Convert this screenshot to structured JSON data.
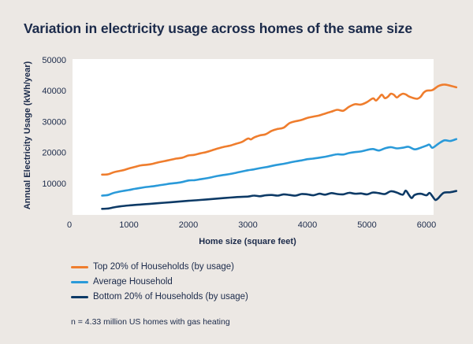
{
  "title": "Variation in electricity usage across homes of the same size",
  "footnote": "n = 4.33 million US homes with gas heating",
  "chart_data": {
    "type": "line",
    "xlabel": "Home size (square feet)",
    "ylabel": "Annual Electricity Usage (kWh/year)",
    "xlim": [
      0,
      6500
    ],
    "ylim": [
      0,
      50000
    ],
    "xticks": [
      0,
      1000,
      2000,
      3000,
      4000,
      5000,
      6000
    ],
    "yticks": [
      10000,
      20000,
      30000,
      40000,
      50000
    ],
    "xtick_labels": [
      "0",
      "1000",
      "2000",
      "3000",
      "4000",
      "5000",
      "6000"
    ],
    "ytick_labels": [
      "10000",
      "20000",
      "30000",
      "40000",
      "50000"
    ],
    "grid": false,
    "legend_position": "bottom",
    "series": [
      {
        "name": "Top 20% of Households (by usage)",
        "color": "#ef7d2d",
        "x": [
          550,
          650,
          750,
          900,
          1000,
          1100,
          1200,
          1300,
          1400,
          1500,
          1600,
          1700,
          1800,
          1900,
          2000,
          2100,
          2200,
          2300,
          2400,
          2500,
          2600,
          2700,
          2800,
          2900,
          3000,
          3050,
          3100,
          3200,
          3300,
          3400,
          3500,
          3600,
          3700,
          3800,
          3900,
          4000,
          4100,
          4200,
          4300,
          4400,
          4500,
          4600,
          4700,
          4800,
          4900,
          5000,
          5100,
          5150,
          5200,
          5250,
          5300,
          5350,
          5400,
          5450,
          5500,
          5550,
          5600,
          5650,
          5700,
          5750,
          5800,
          5850,
          5900,
          5950,
          6000,
          6100,
          6200,
          6300,
          6400,
          6500
        ],
        "values": [
          12800,
          12900,
          13600,
          14200,
          14800,
          15300,
          15800,
          16000,
          16300,
          16800,
          17200,
          17600,
          18000,
          18300,
          19000,
          19200,
          19700,
          20100,
          20700,
          21300,
          21800,
          22200,
          22800,
          23400,
          24500,
          24200,
          24800,
          25500,
          25900,
          27000,
          27600,
          28000,
          29500,
          30100,
          30500,
          31200,
          31600,
          32000,
          32600,
          33200,
          33800,
          33500,
          34800,
          35600,
          35500,
          36300,
          37500,
          36800,
          37700,
          38700,
          37600,
          38000,
          39000,
          38700,
          37800,
          38500,
          39000,
          38800,
          38200,
          37800,
          37500,
          37400,
          38000,
          39300,
          40000,
          40200,
          41500,
          42000,
          41600,
          41100
        ]
      },
      {
        "name": "Average Household",
        "color": "#2a9ad9",
        "x": [
          550,
          650,
          750,
          900,
          1000,
          1100,
          1200,
          1300,
          1400,
          1500,
          1600,
          1700,
          1800,
          1900,
          2000,
          2100,
          2200,
          2300,
          2400,
          2500,
          2600,
          2700,
          2800,
          2900,
          3000,
          3100,
          3200,
          3300,
          3400,
          3500,
          3600,
          3700,
          3800,
          3900,
          4000,
          4100,
          4200,
          4300,
          4400,
          4500,
          4600,
          4700,
          4800,
          4900,
          5000,
          5100,
          5200,
          5300,
          5400,
          5500,
          5600,
          5700,
          5800,
          5900,
          6000,
          6050,
          6100,
          6200,
          6300,
          6400,
          6500
        ],
        "values": [
          6000,
          6200,
          6900,
          7500,
          7800,
          8200,
          8500,
          8800,
          9000,
          9300,
          9600,
          9900,
          10100,
          10400,
          10900,
          11000,
          11300,
          11600,
          12000,
          12400,
          12700,
          13000,
          13400,
          13800,
          14200,
          14500,
          14900,
          15200,
          15600,
          16000,
          16300,
          16700,
          17100,
          17400,
          17800,
          18000,
          18300,
          18600,
          19000,
          19400,
          19300,
          19800,
          20100,
          20300,
          20800,
          21100,
          20600,
          21300,
          21700,
          21300,
          21500,
          21800,
          21000,
          21500,
          22200,
          22500,
          21500,
          22800,
          23900,
          23700,
          24300
        ]
      },
      {
        "name": "Bottom 20% of Households (by usage)",
        "color": "#0d3a66",
        "x": [
          550,
          650,
          750,
          850,
          1000,
          1200,
          1400,
          1600,
          1800,
          2000,
          2200,
          2400,
          2600,
          2800,
          3000,
          3100,
          3200,
          3300,
          3400,
          3500,
          3600,
          3700,
          3800,
          3900,
          4000,
          4100,
          4200,
          4300,
          4400,
          4500,
          4600,
          4700,
          4800,
          4900,
          5000,
          5100,
          5200,
          5300,
          5400,
          5500,
          5600,
          5650,
          5700,
          5750,
          5800,
          5900,
          6000,
          6050,
          6100,
          6150,
          6200,
          6250,
          6300,
          6400,
          6500
        ],
        "values": [
          1700,
          1800,
          2200,
          2500,
          2800,
          3100,
          3400,
          3700,
          4000,
          4300,
          4600,
          4900,
          5200,
          5500,
          5700,
          6000,
          5800,
          6100,
          6200,
          6000,
          6400,
          6200,
          6000,
          6500,
          6400,
          6100,
          6600,
          6300,
          6800,
          6500,
          6400,
          6900,
          6600,
          6700,
          6400,
          7000,
          6800,
          6500,
          7400,
          7000,
          6300,
          7600,
          6400,
          5200,
          6200,
          6600,
          6100,
          6900,
          5800,
          4600,
          5200,
          6300,
          7000,
          7100,
          7500
        ]
      }
    ]
  }
}
